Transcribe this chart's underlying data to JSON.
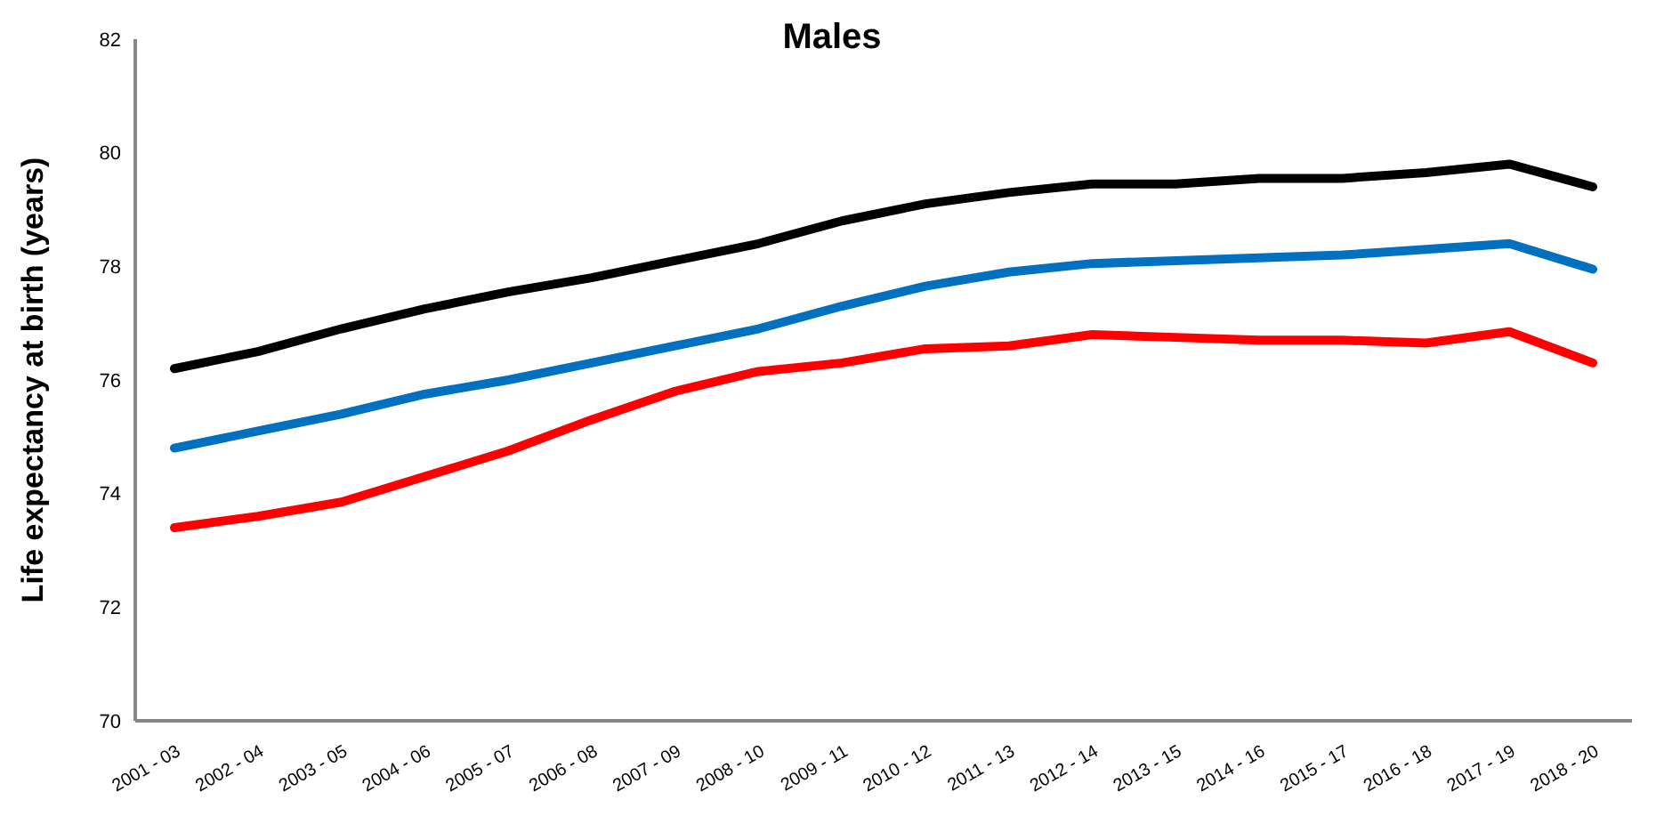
{
  "chart_data": {
    "type": "line",
    "title": "Males",
    "ylabel": "Life expectancy at birth (years)",
    "categories": [
      "2001 - 03",
      "2002 - 04",
      "2003 - 05",
      "2004 - 06",
      "2005 - 07",
      "2006 - 08",
      "2007 - 09",
      "2008 - 10",
      "2009 - 11",
      "2010 - 12",
      "2011 - 13",
      "2012 - 14",
      "2013 - 15",
      "2014 - 16",
      "2015 - 17",
      "2016 - 18",
      "2017 - 19",
      "2018 - 20"
    ],
    "series": [
      {
        "color": "#000000",
        "values": [
          76.2,
          76.5,
          76.9,
          77.25,
          77.55,
          77.8,
          78.1,
          78.4,
          78.8,
          79.1,
          79.3,
          79.45,
          79.45,
          79.55,
          79.55,
          79.65,
          79.8,
          79.4
        ]
      },
      {
        "color": "#0070c0",
        "values": [
          74.8,
          75.1,
          75.4,
          75.75,
          76.0,
          76.3,
          76.6,
          76.9,
          77.3,
          77.65,
          77.9,
          78.05,
          78.1,
          78.15,
          78.2,
          78.3,
          78.4,
          77.95
        ]
      },
      {
        "color": "#ff0000",
        "values": [
          73.4,
          73.6,
          73.85,
          74.3,
          74.75,
          75.3,
          75.8,
          76.15,
          76.3,
          76.55,
          76.6,
          76.8,
          76.75,
          76.7,
          76.7,
          76.65,
          76.85,
          76.3
        ]
      }
    ],
    "ylim": [
      70,
      82
    ],
    "yticks": [
      70,
      72,
      74,
      76,
      78,
      80,
      82
    ],
    "grid": false,
    "marker": "none",
    "line_style": "solid"
  }
}
